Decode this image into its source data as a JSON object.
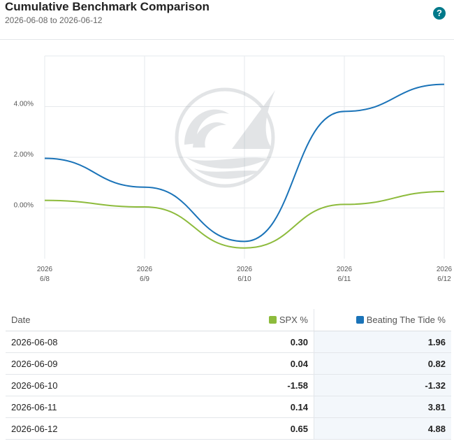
{
  "header": {
    "title": "Cumulative Benchmark Comparison",
    "subtitle": "2026-06-08 to 2026-06-12",
    "help": "?"
  },
  "colors": {
    "spx": "#8dbb3c",
    "btt": "#1a73b8",
    "accent": "#00798a"
  },
  "chart_data": {
    "type": "line",
    "x": [
      "2026-06-08",
      "2026-06-09",
      "2026-06-10",
      "2026-06-11",
      "2026-06-12"
    ],
    "x_tick_labels": [
      [
        "2026",
        "6/8"
      ],
      [
        "2026",
        "6/9"
      ],
      [
        "2026",
        "6/10"
      ],
      [
        "2026",
        "6/11"
      ],
      [
        "2026",
        "6/12"
      ]
    ],
    "series": [
      {
        "name": "SPX %",
        "color": "#8dbb3c",
        "values": [
          0.3,
          0.04,
          -1.58,
          0.14,
          0.65
        ]
      },
      {
        "name": "Beating The Tide %",
        "color": "#1a73b8",
        "values": [
          1.96,
          0.82,
          -1.32,
          3.81,
          4.88
        ]
      }
    ],
    "y_ticks": [
      0,
      2,
      4
    ],
    "y_tick_labels": [
      "0.00%",
      "2.00%",
      "4.00%"
    ],
    "ylim": [
      -2,
      6
    ],
    "grid": true,
    "watermark": "wave-sail-logo"
  },
  "table": {
    "columns": [
      "Date",
      "SPX %",
      "Beating The Tide %"
    ],
    "rows": [
      [
        "2026-06-08",
        "0.30",
        "1.96"
      ],
      [
        "2026-06-09",
        "0.04",
        "0.82"
      ],
      [
        "2026-06-10",
        "-1.58",
        "-1.32"
      ],
      [
        "2026-06-11",
        "0.14",
        "3.81"
      ],
      [
        "2026-06-12",
        "0.65",
        "4.88"
      ]
    ]
  }
}
